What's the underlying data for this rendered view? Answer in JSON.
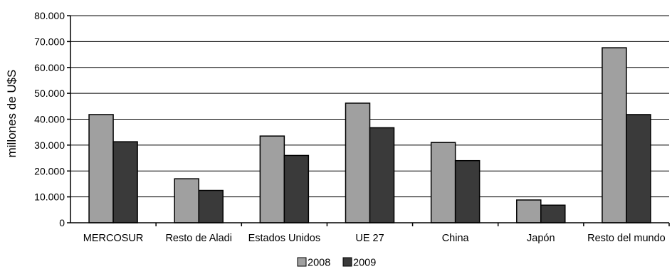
{
  "chart_data": {
    "type": "bar",
    "title": "",
    "xlabel": "",
    "ylabel": "millones de U$S",
    "ylim": [
      0,
      80000
    ],
    "yticks": [
      0,
      10000,
      20000,
      30000,
      40000,
      50000,
      60000,
      70000,
      80000
    ],
    "ytick_labels": [
      "0",
      "10.000",
      "20.000",
      "30.000",
      "40.000",
      "50.000",
      "60.000",
      "70.000",
      "80.000"
    ],
    "grid": true,
    "legend_position": "bottom-center",
    "categories": [
      "MERCOSUR",
      "Resto de Aladi",
      "Estados Unidos",
      "UE 27",
      "China",
      "Japón",
      "Resto del mundo"
    ],
    "series": [
      {
        "name": "2008",
        "color": "#a0a0a0",
        "values": [
          41800,
          17000,
          33500,
          46200,
          31000,
          8800,
          67600
        ]
      },
      {
        "name": "2009",
        "color": "#3a3a3a",
        "values": [
          31300,
          12500,
          26000,
          36700,
          24000,
          6800,
          41800
        ]
      }
    ]
  }
}
